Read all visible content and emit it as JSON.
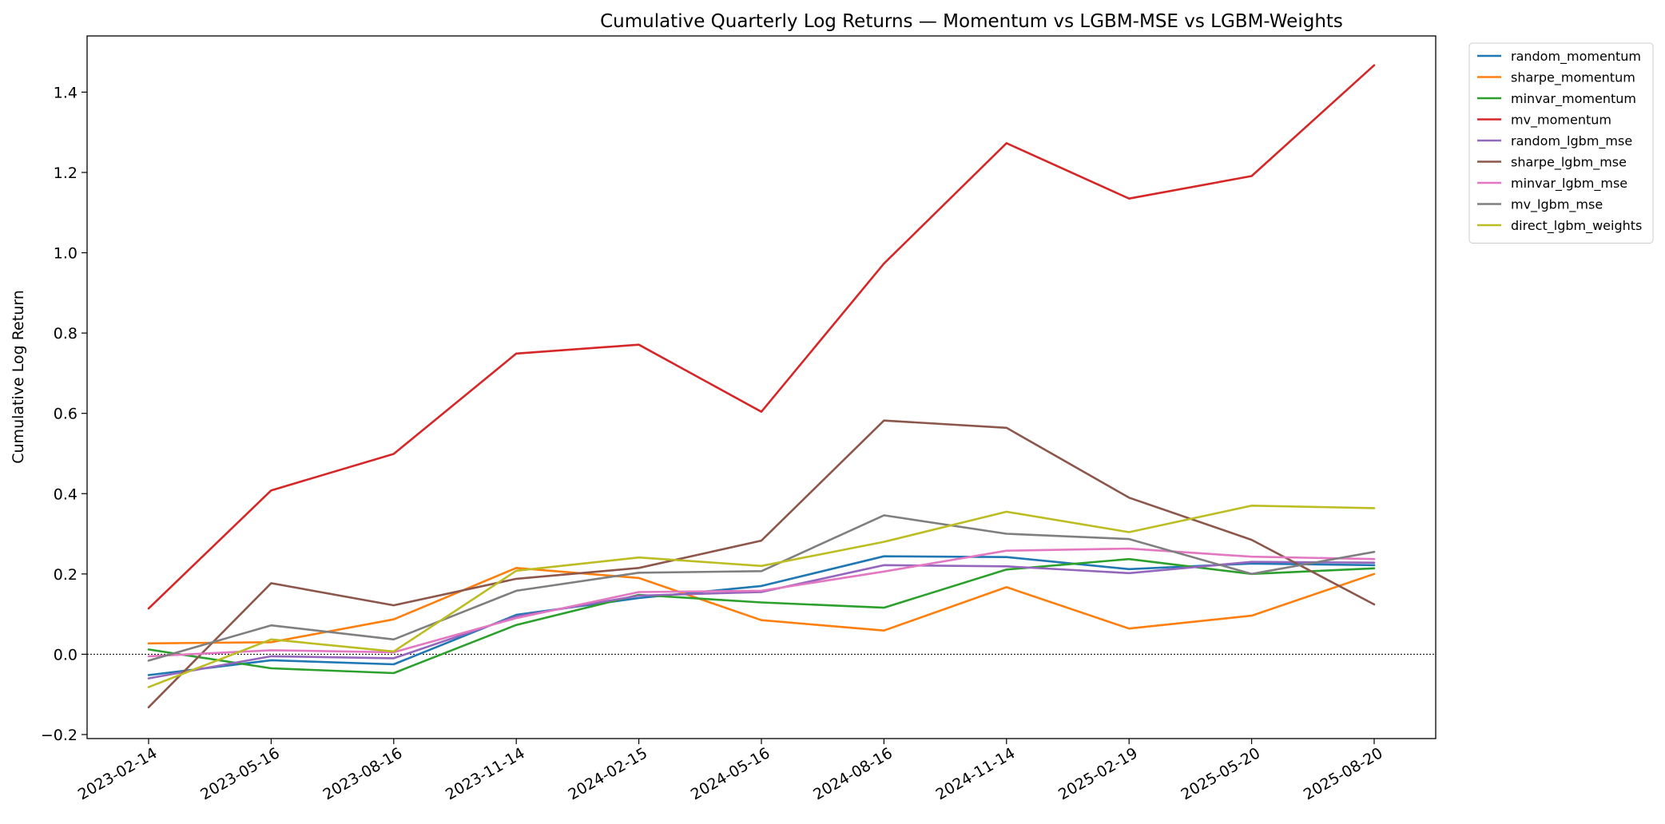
{
  "chart_data": {
    "type": "line",
    "title": "Cumulative Quarterly Log Returns — Momentum vs LGBM-MSE vs LGBM-Weights",
    "xlabel": "",
    "ylabel": "Cumulative Log Return",
    "x": [
      "2023-02-14",
      "2023-05-16",
      "2023-08-16",
      "2023-11-14",
      "2024-02-15",
      "2024-05-16",
      "2024-08-16",
      "2024-11-14",
      "2025-02-19",
      "2025-05-20",
      "2025-08-20"
    ],
    "ylim": [
      -0.21,
      1.54
    ],
    "yticks": [
      -0.2,
      0.0,
      0.2,
      0.4,
      0.6,
      0.8,
      1.0,
      1.2,
      1.4
    ],
    "ytick_labels": [
      "−0.2",
      "0.0",
      "0.2",
      "0.4",
      "0.6",
      "0.8",
      "1.0",
      "1.2",
      "1.4"
    ],
    "reference_line": {
      "y": 0.0,
      "style": "dotted",
      "color": "#000000"
    },
    "grid": false,
    "legend_position": "outside-top-right",
    "series": [
      {
        "name": "random_momentum",
        "color": "#1f77b4",
        "values": [
          -0.052,
          -0.015,
          -0.025,
          0.098,
          0.14,
          0.17,
          0.244,
          0.242,
          0.212,
          0.226,
          0.222
        ]
      },
      {
        "name": "sharpe_momentum",
        "color": "#ff7f0e",
        "values": [
          0.027,
          0.03,
          0.087,
          0.215,
          0.19,
          0.085,
          0.059,
          0.167,
          0.064,
          0.096,
          0.2
        ]
      },
      {
        "name": "minvar_momentum",
        "color": "#2ca02c",
        "values": [
          0.012,
          -0.035,
          -0.047,
          0.073,
          0.148,
          0.129,
          0.116,
          0.211,
          0.237,
          0.2,
          0.214
        ]
      },
      {
        "name": "mv_momentum",
        "color": "#d62728",
        "values": [
          0.114,
          0.408,
          0.499,
          0.749,
          0.771,
          0.604,
          0.973,
          1.273,
          1.135,
          1.191,
          1.467
        ]
      },
      {
        "name": "random_lgbm_mse",
        "color": "#9467bd",
        "values": [
          -0.06,
          -0.005,
          -0.01,
          0.094,
          0.146,
          0.155,
          0.222,
          0.219,
          0.202,
          0.23,
          0.228
        ]
      },
      {
        "name": "sharpe_lgbm_mse",
        "color": "#8c564b",
        "values": [
          -0.132,
          0.177,
          0.122,
          0.188,
          0.215,
          0.283,
          0.582,
          0.564,
          0.39,
          0.285,
          0.124
        ]
      },
      {
        "name": "minvar_lgbm_mse",
        "color": "#e377c2",
        "values": [
          -0.005,
          0.01,
          0.005,
          0.09,
          0.155,
          0.158,
          0.206,
          0.258,
          0.263,
          0.243,
          0.237
        ]
      },
      {
        "name": "mv_lgbm_mse",
        "color": "#7f7f7f",
        "values": [
          -0.016,
          0.072,
          0.037,
          0.158,
          0.203,
          0.207,
          0.346,
          0.3,
          0.287,
          0.2,
          0.255
        ]
      },
      {
        "name": "direct_lgbm_weights",
        "color": "#bcbd22",
        "values": [
          -0.082,
          0.037,
          0.007,
          0.208,
          0.241,
          0.22,
          0.28,
          0.355,
          0.304,
          0.37,
          0.364
        ]
      }
    ]
  }
}
